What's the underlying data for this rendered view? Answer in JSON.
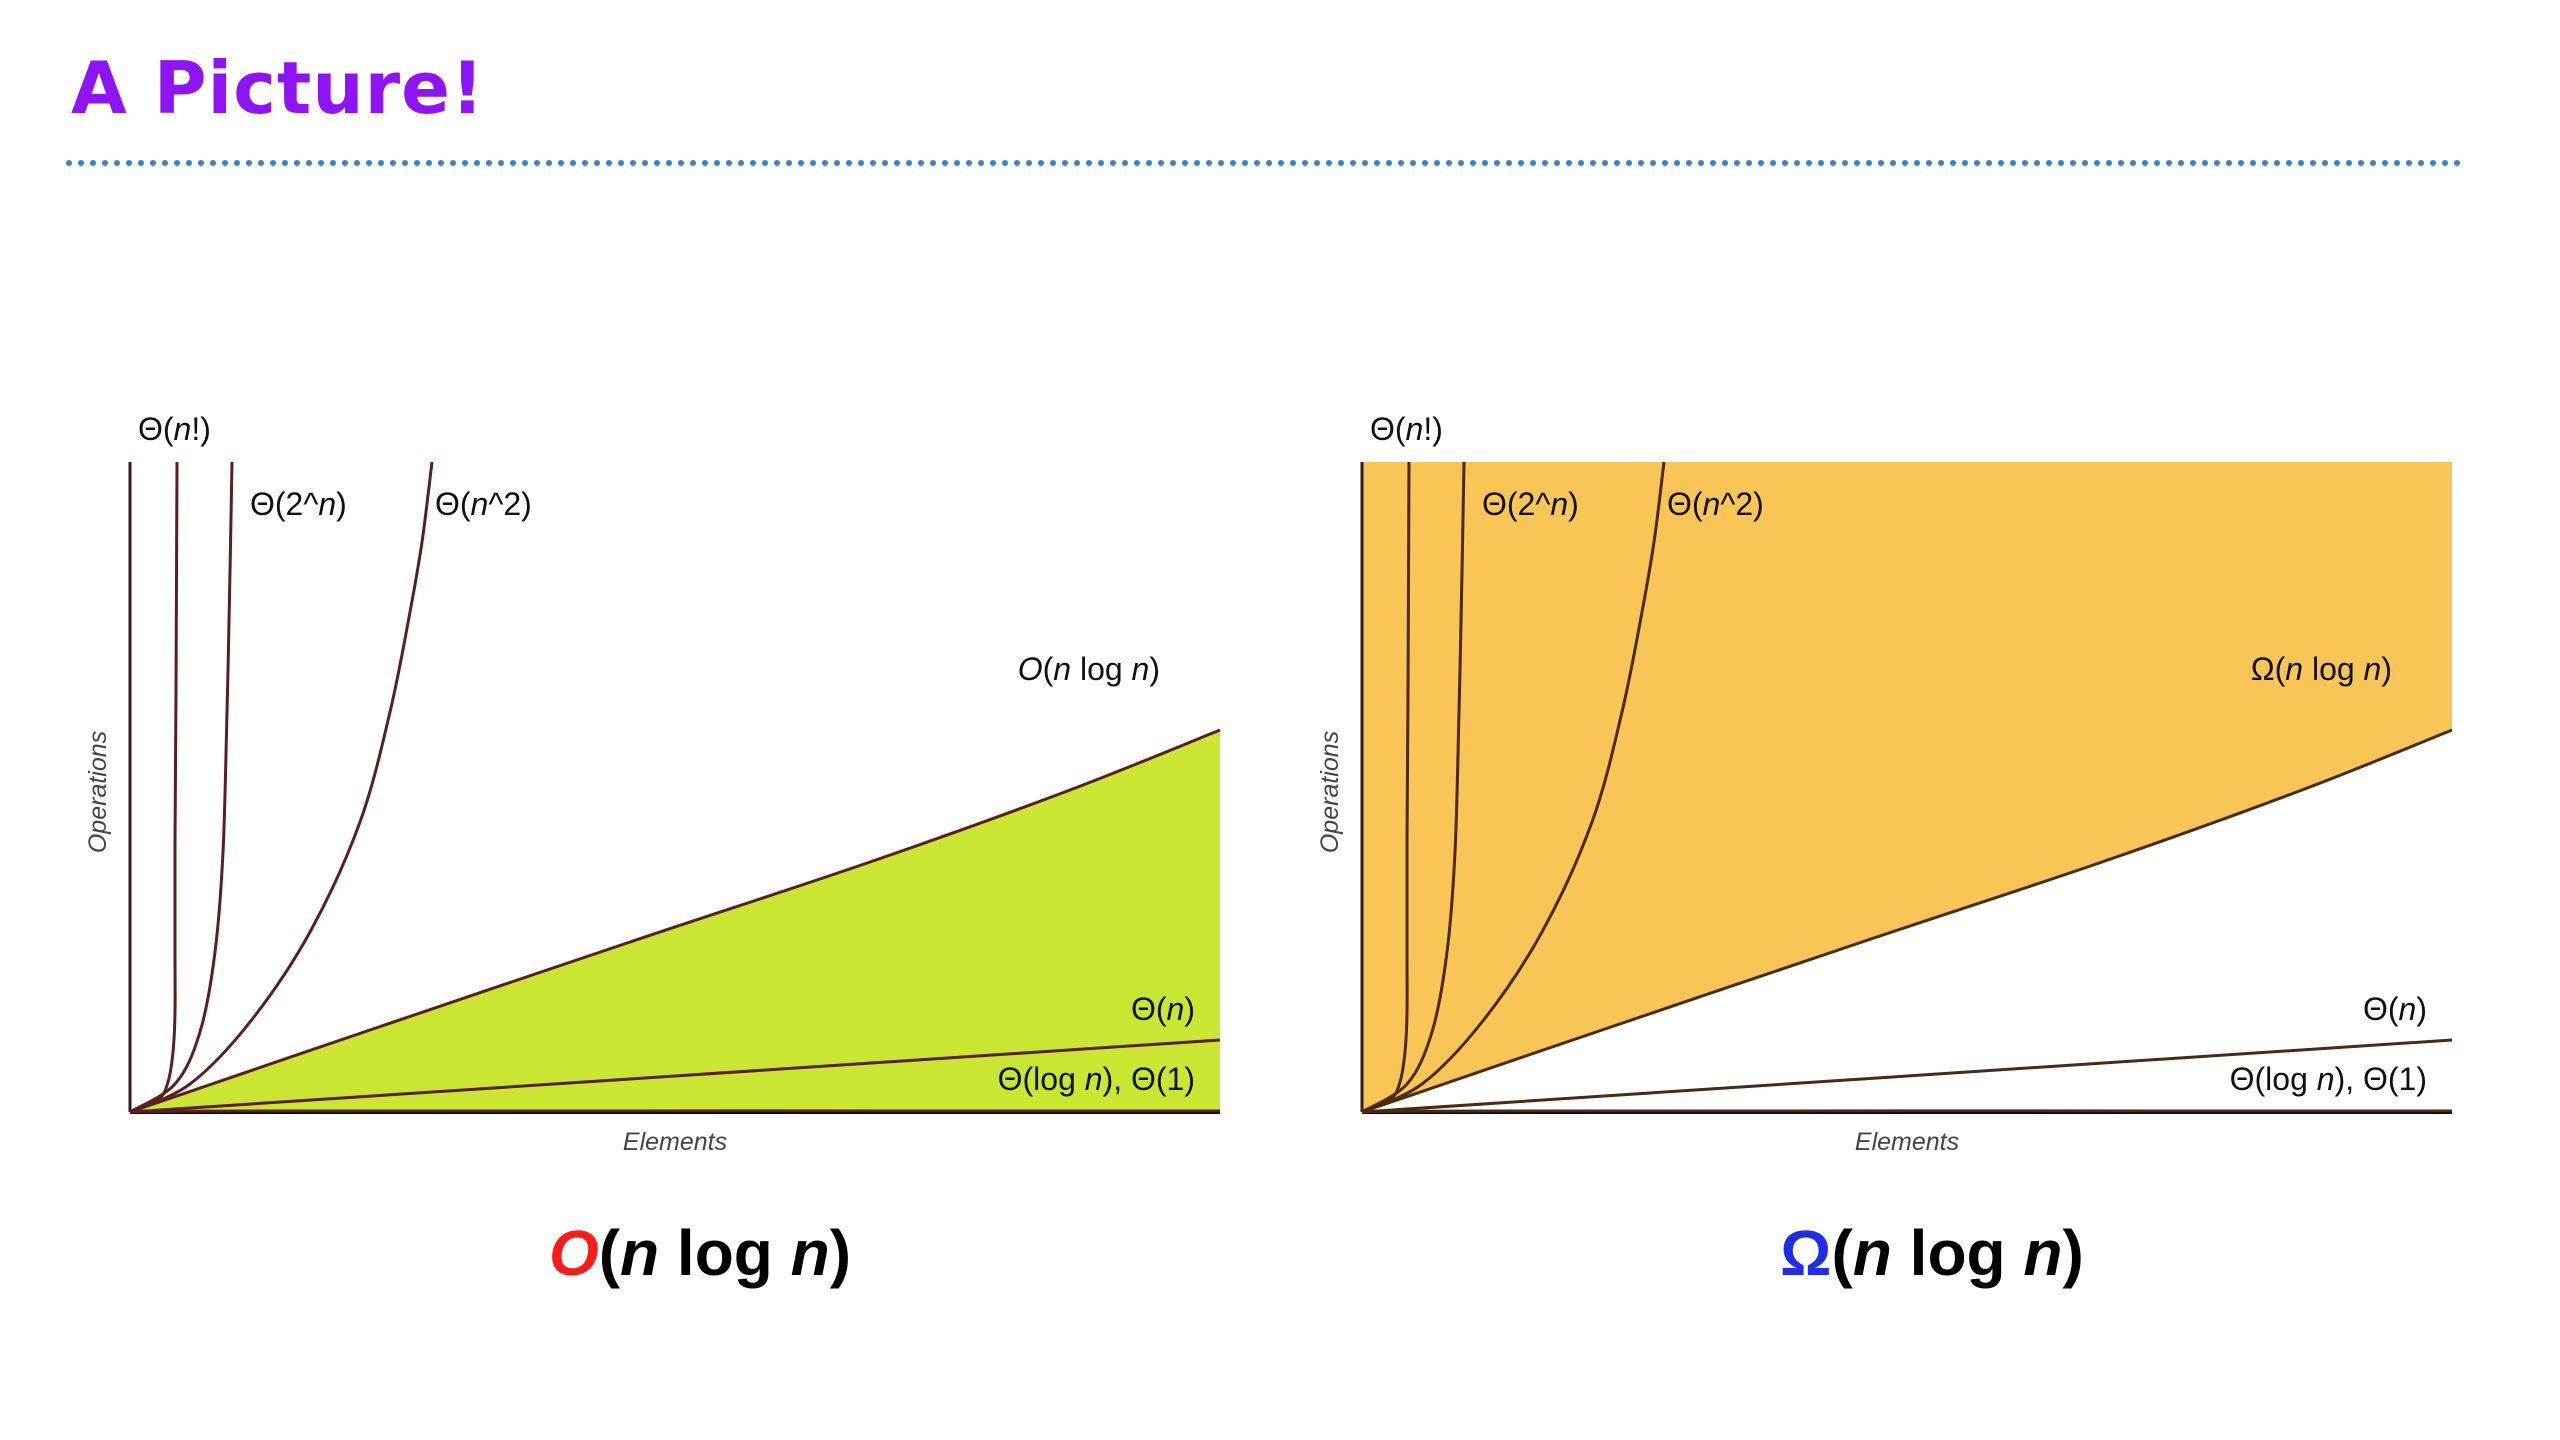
{
  "slide": {
    "title": "A Picture!",
    "title_color": "#8f14f5",
    "rule_color": "#2e86d6"
  },
  "panels": [
    {
      "id": "big-o",
      "fill_color": "#c9e632",
      "shaded_region": "below",
      "curve_color": "#5a1f1f",
      "curves": [
        {
          "key": "fact",
          "label": "Θ(n!)",
          "markup": "Θ(<i>n</i>!)"
        },
        {
          "key": "exp",
          "label": "Θ(2^n)",
          "markup": "Θ(2^<i>n</i>)"
        },
        {
          "key": "quad",
          "label": "Θ(n^2)",
          "markup": "Θ(<i>n</i>^2)"
        },
        {
          "key": "nlogn",
          "label": "O(n log n)",
          "markup": "<i>O</i>(<i>n</i> log <i>n</i>)"
        },
        {
          "key": "lin",
          "label": "Θ(n)",
          "markup": "Θ(<i>n</i>)"
        },
        {
          "key": "const",
          "label": "Θ(log n), Θ(1)",
          "markup": "Θ(log <i>n</i>), Θ(1)"
        }
      ],
      "x_axis_label": "Elements",
      "y_axis_label": "Operations",
      "caption": {
        "symbol": "O",
        "symbol_color": "#ff1a1a",
        "rest": "(n log n)"
      }
    },
    {
      "id": "big-omega",
      "fill_color": "#f8c556",
      "shaded_region": "above",
      "curve_color": "#4a2a10",
      "curves": [
        {
          "key": "fact",
          "label": "Θ(n!)",
          "markup": "Θ(<i>n</i>!)"
        },
        {
          "key": "exp",
          "label": "Θ(2^n)",
          "markup": "Θ(2^<i>n</i>)"
        },
        {
          "key": "quad",
          "label": "Θ(n^2)",
          "markup": "Θ(<i>n</i>^2)"
        },
        {
          "key": "nlogn",
          "label": "Ω(n log n)",
          "markup": "Ω(<i>n</i> log <i>n</i>)"
        },
        {
          "key": "lin",
          "label": "Θ(n)",
          "markup": "Θ(<i>n</i>)"
        },
        {
          "key": "const",
          "label": "Θ(log n), Θ(1)",
          "markup": "Θ(log <i>n</i>), Θ(1)"
        }
      ],
      "x_axis_label": "Elements",
      "y_axis_label": "Operations",
      "caption": {
        "symbol": "Ω",
        "symbol_color": "#1f2ee6",
        "rest": "(n log n)"
      }
    }
  ]
}
